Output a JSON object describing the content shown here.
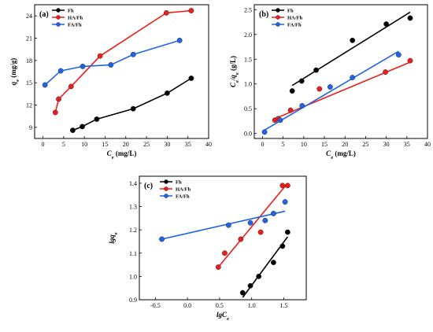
{
  "chart_data": [
    {
      "type": "line",
      "panel_label": "(a)",
      "xlabel_main": "C",
      "xlabel_sub": "e",
      "xlabel_unit": " (mg/L)",
      "ylabel_main": "q",
      "ylabel_sub": "e",
      "ylabel_unit": " (mg/g)",
      "xlim": [
        -2,
        40
      ],
      "ylim": [
        7.5,
        25.5
      ],
      "xticks": [
        0,
        5,
        10,
        15,
        20,
        25,
        30,
        35,
        40
      ],
      "yticks": [
        9,
        12,
        15,
        18,
        21,
        24
      ],
      "legend_position": "top-left",
      "grid": false,
      "series": [
        {
          "name": "Fh",
          "color": "#000000",
          "x": [
            7.2,
            9.5,
            13.0,
            21.8,
            30.0,
            35.8
          ],
          "y": [
            8.6,
            9.1,
            10.1,
            11.5,
            13.6,
            15.6
          ]
        },
        {
          "name": "HA/Fh",
          "color": "#ee1c1c",
          "x": [
            3.0,
            3.8,
            6.8,
            13.8,
            29.8,
            35.8
          ],
          "y": [
            11.0,
            12.8,
            14.5,
            18.6,
            24.4,
            24.7
          ]
        },
        {
          "name": "FA/Fh",
          "color": "#1f63e6",
          "x": [
            0.5,
            4.3,
            9.6,
            16.4,
            21.8,
            33.0
          ],
          "y": [
            14.7,
            16.6,
            17.2,
            17.4,
            18.8,
            20.7
          ]
        }
      ]
    },
    {
      "type": "scatter",
      "panel_label": "(b)",
      "xlabel_main": "C",
      "xlabel_sub": "e",
      "xlabel_unit": " (mg/L)",
      "ylabel_main": "C",
      "ylabel_sub": "e",
      "ylabel_mid": "/q",
      "ylabel_sub2": "e",
      "ylabel_unit": " (g/L)",
      "xlim": [
        -2,
        40
      ],
      "ylim": [
        -0.1,
        2.6
      ],
      "xticks": [
        0,
        5,
        10,
        15,
        20,
        25,
        30,
        35,
        40
      ],
      "yticks": [
        0.0,
        0.5,
        1.0,
        1.5,
        2.0,
        2.5
      ],
      "legend_position": "top-left",
      "grid": false,
      "series": [
        {
          "name": "Fh",
          "color": "#000000",
          "x": [
            7.2,
            9.5,
            13.0,
            21.8,
            30.0,
            35.8
          ],
          "y": [
            0.86,
            1.06,
            1.28,
            1.88,
            2.21,
            2.33
          ],
          "fit": [
            [
              7.2,
              0.97
            ],
            [
              35.8,
              2.45
            ]
          ]
        },
        {
          "name": "HA/Fh",
          "color": "#ee1c1c",
          "x": [
            3.0,
            3.8,
            6.8,
            13.8,
            29.8,
            35.8
          ],
          "y": [
            0.27,
            0.3,
            0.47,
            0.9,
            1.24,
            1.47
          ],
          "fit": [
            [
              3.0,
              0.3
            ],
            [
              35.8,
              1.44
            ]
          ]
        },
        {
          "name": "FA/Fh",
          "color": "#1f63e6",
          "x": [
            0.5,
            4.3,
            9.6,
            16.4,
            21.8,
            33.0
          ],
          "y": [
            0.03,
            0.27,
            0.56,
            0.94,
            1.13,
            1.59
          ],
          "fit": [
            [
              0.5,
              0.07
            ],
            [
              33.0,
              1.66
            ]
          ]
        }
      ]
    },
    {
      "type": "scatter",
      "panel_label": "(c)",
      "xlabel_main": "lgC",
      "xlabel_sub": "e",
      "ylabel_main": "lgq",
      "ylabel_sub": "e",
      "xlim": [
        -0.75,
        1.85
      ],
      "ylim": [
        0.9,
        1.43
      ],
      "xticks": [
        -0.5,
        0.0,
        0.5,
        1.0,
        1.5
      ],
      "ytick_values": [
        0.9,
        1.0,
        1.1,
        1.2,
        1.3,
        1.4
      ],
      "ytick_labels": [
        "0.9",
        "1.0",
        "1.1",
        "1.2",
        "1.3",
        "1.4"
      ],
      "legend_position": "top-left",
      "grid": false,
      "series": [
        {
          "name": "Fh",
          "color": "#000000",
          "x": [
            0.86,
            0.98,
            1.11,
            1.34,
            1.48,
            1.56
          ],
          "y": [
            0.93,
            0.96,
            1.0,
            1.06,
            1.13,
            1.19
          ],
          "fit": [
            [
              0.86,
              0.91
            ],
            [
              1.56,
              1.17
            ]
          ]
        },
        {
          "name": "HA/Fh",
          "color": "#ee1c1c",
          "x": [
            0.48,
            0.58,
            0.83,
            1.14,
            1.48,
            1.56
          ],
          "y": [
            1.04,
            1.1,
            1.16,
            1.19,
            1.39,
            1.39
          ],
          "fit": [
            [
              0.48,
              1.04
            ],
            [
              1.56,
              1.4
            ]
          ]
        },
        {
          "name": "FA/Fh",
          "color": "#1f63e6",
          "x": [
            -0.4,
            0.64,
            0.98,
            1.21,
            1.34,
            1.52
          ],
          "y": [
            1.16,
            1.22,
            1.23,
            1.24,
            1.27,
            1.32
          ],
          "fit": [
            [
              -0.4,
              1.16
            ],
            [
              1.52,
              1.28
            ]
          ]
        }
      ]
    }
  ]
}
